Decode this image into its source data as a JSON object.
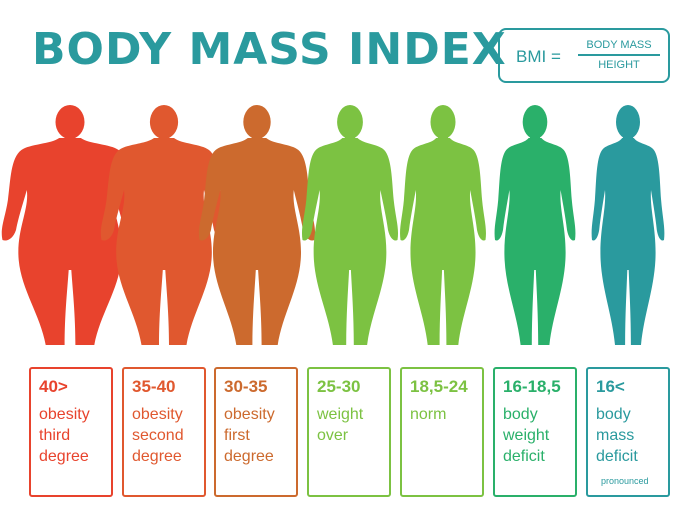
{
  "title": "BODY MASS INDEX",
  "formula": {
    "lhs": "BMI =",
    "numerator": "BODY MASS",
    "denominator": "HEIGHT"
  },
  "colors": {
    "teal": "#2a9a9e"
  },
  "categories": [
    {
      "range": "40>",
      "lines": [
        "obesity",
        "third",
        "degree"
      ],
      "color": "#e8432d",
      "body": "obese-3"
    },
    {
      "range": "35-40",
      "lines": [
        "obesity",
        "second",
        "degree"
      ],
      "color": "#e0582f",
      "body": "obese-2"
    },
    {
      "range": "30-35",
      "lines": [
        "obesity",
        "first",
        "degree"
      ],
      "color": "#cc6a2e",
      "body": "obese-1"
    },
    {
      "range": "25-30",
      "lines": [
        "weight",
        "over"
      ],
      "color": "#7cc242",
      "body": "overweight"
    },
    {
      "range": "18,5-24",
      "lines": [
        "norm"
      ],
      "color": "#7cc242",
      "body": "normal"
    },
    {
      "range": "16-18,5",
      "lines": [
        "body",
        "weight",
        "deficit"
      ],
      "color": "#2ab06a",
      "body": "underweight"
    },
    {
      "range": "16<",
      "lines": [
        "body",
        "mass",
        "deficit"
      ],
      "color": "#2a9a9e",
      "body": "severe-underweight"
    }
  ],
  "footnote": "pronounced"
}
